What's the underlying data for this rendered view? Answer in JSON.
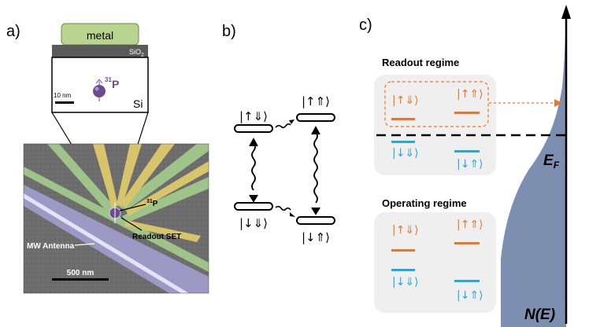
{
  "panel_a": {
    "label": "a)",
    "metal_label": "metal",
    "oxide_label": "SiO",
    "oxide_subscript": "2",
    "atom_superscript": "31",
    "atom_symbol": "P",
    "substrate_label": "Si",
    "inset_scale_label": "10 nm",
    "sem_p_label_sup": "31",
    "sem_p_label": "P",
    "readout_label": "Readout SET",
    "antenna_label": "MW Antenna",
    "sem_scale_label": "500 nm"
  },
  "panel_b": {
    "label": "b)",
    "states": {
      "up_down": "|↑⇓⟩",
      "up_up": "|↑⇑⟩",
      "down_down": "|↓⇓⟩",
      "down_up": "|↓⇑⟩"
    }
  },
  "panel_c": {
    "label": "c)",
    "readout_title": "Readout regime",
    "operating_title": "Operating regime",
    "fermi_label": "E",
    "fermi_subscript": "F",
    "dos_label": "N(E)",
    "readout_states": [
      "|↑⇓⟩",
      "|↑⇑⟩",
      "|↓⇓⟩",
      "|↓⇑⟩"
    ],
    "operating_states": [
      "|↑⇓⟩",
      "|↑⇑⟩",
      "|↓⇓⟩",
      "|↓⇑⟩"
    ]
  },
  "colors": {
    "metal": "#b9d48f",
    "oxide": "#5a5a5a",
    "atom": "#6a4d8f",
    "sem_background": "#6d6d6d",
    "gate_green": "#9ec48a",
    "gate_yellow": "#d8c46b",
    "antenna_violet": "#a7a1d4",
    "spin_up_orange": "#e8772e",
    "spin_down_blue": "#23a8e0",
    "dos_fill": "#7d8fb0",
    "regime_box": "#efefef"
  }
}
